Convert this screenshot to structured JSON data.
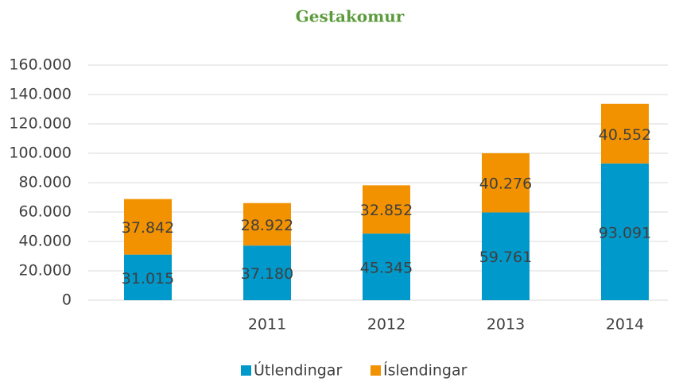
{
  "chart_data": {
    "type": "stacked_bar",
    "title": "Gestakomur",
    "categories": [
      null,
      "2011",
      "2012",
      "2013",
      "2014"
    ],
    "series": [
      {
        "name": "Útlendingar",
        "color": "#0099cc",
        "values": [
          31015,
          37180,
          45345,
          59761,
          93091
        ],
        "value_labels": [
          "31.015",
          "37.180",
          "45.345",
          "59.761",
          "93.091"
        ]
      },
      {
        "name": "Íslendingar",
        "color": "#f39200",
        "values": [
          37842,
          28922,
          32852,
          40276,
          40552
        ],
        "value_labels": [
          "37.842",
          "28.922",
          "32.852",
          "40.276",
          "40.552"
        ]
      }
    ],
    "ylim": [
      0,
      160000
    ],
    "yticks": [
      0,
      {
        "value": 20000,
        "label": "20.000"
      },
      {
        "value": 40000,
        "label": "40.000"
      },
      {
        "value": 60000,
        "label": "60.000"
      },
      {
        "value": 80000,
        "label": "80.000"
      },
      {
        "value": 100000,
        "label": "100.000"
      },
      {
        "value": 120000,
        "label": "120.000"
      },
      {
        "value": 140000,
        "label": "140.000"
      },
      {
        "value": 160000,
        "label": "160.000"
      }
    ],
    "grid": true,
    "legend": "bottom"
  }
}
